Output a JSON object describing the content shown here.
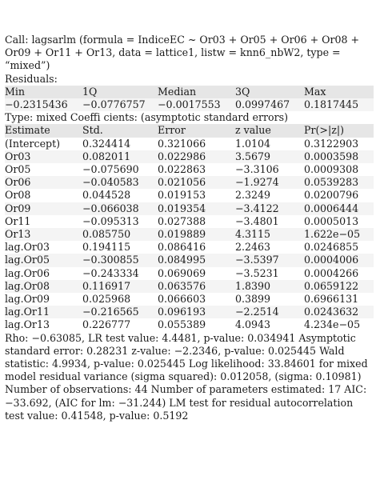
{
  "call_text": "Call: lagsarlm (formula = IndiceEC ~ Or03 + Or05 + Or06 + Or08 + Or09 + Or11 + Or13, data = lattice1, listw = knn6_nbW2, type = “mixed”)",
  "residuals_label": "Residuals:",
  "residuals": {
    "headers": [
      "Min",
      "1Q",
      "Median",
      "3Q",
      "Max"
    ],
    "values": [
      "−0.2315436",
      "−0.0776757",
      "−0.0017553",
      "0.0997467",
      "0.1817445"
    ]
  },
  "type_text": "Type: mixed Coeffi cients: (asymptotic standard errors)",
  "coefficients": {
    "headers": [
      "Estimate",
      "Std.",
      "Error",
      "z value",
      "Pr(>|z|)"
    ],
    "rows": [
      [
        "(Intercept)",
        "0.324414",
        "0.321066",
        "1.0104",
        "0.3122903"
      ],
      [
        "Or03",
        "0.082011",
        "0.022986",
        "3.5679",
        "0.0003598"
      ],
      [
        "Or05",
        "−0.075690",
        "0.022863",
        "−3.3106",
        "0.0009308"
      ],
      [
        "Or06",
        "−0.040583",
        "0.021056",
        "−1.9274",
        "0.0539283"
      ],
      [
        "Or08",
        "0.044528",
        "0.019153",
        "2.3249",
        "0.0200796"
      ],
      [
        "Or09",
        "−0.066038",
        "0.019354",
        "−3.4122",
        "0.0006444"
      ],
      [
        "Or11",
        "−0.095313",
        "0.027388",
        "−3.4801",
        "0.0005013"
      ],
      [
        "Or13",
        "0.085750",
        "0.019889",
        "4.3115",
        "1.622e−05"
      ],
      [
        "lag.Or03",
        "0.194115",
        "0.086416",
        "2.2463",
        "0.0246855"
      ],
      [
        "lag.Or05",
        "−0.300855",
        "0.084995",
        "−3.5397",
        "0.0004006"
      ],
      [
        "lag.Or06",
        "−0.243334",
        "0.069069",
        "−3.5231",
        "0.0004266"
      ],
      [
        "lag.Or08",
        "0.116917",
        "0.063576",
        "1.8390",
        "0.0659122"
      ],
      [
        "lag.Or09",
        "0.025968",
        "0.066603",
        "0.3899",
        "0.6966131"
      ],
      [
        "lag.Or11",
        "−0.216565",
        "0.096193",
        "−2.2514",
        "0.0243632"
      ],
      [
        "lag.Or13",
        "0.226777",
        "0.055389",
        "4.0943",
        "4.234e−05"
      ]
    ]
  },
  "summary_text": "Rho: −0.63085, LR test value: 4.4481, p-value: 0.034941 Asymptotic standard error: 0.28231 z-value: −2.2346, p-value: 0.025445 Wald statistic: 4.9934, p-value: 0.025445 Log likelihood: 33.84601 for mixed model residual variance (sigma squared): 0.012058, (sigma: 0.10981) Number of observations: 44 Number of parameters estimated: 17 AIC: −33.692, (AIC for lm: −31.244) LM test for residual autocorrelation test value: 0.41548, p-value: 0.5192"
}
